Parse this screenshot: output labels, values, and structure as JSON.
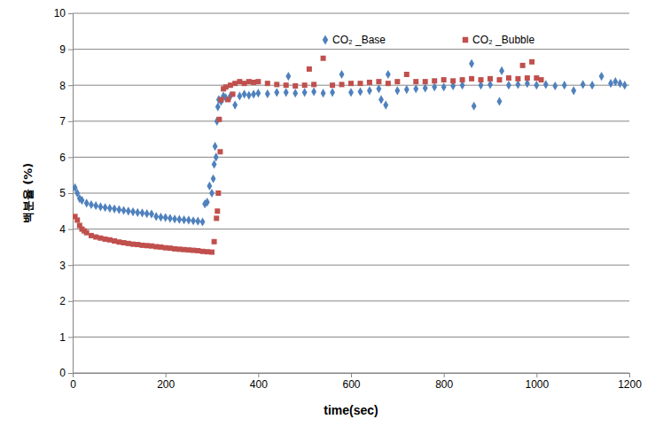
{
  "chart_data": {
    "type": "scatter",
    "x_label": "time(sec)",
    "y_label": "백분율 (%)",
    "xlim": [
      0,
      1200
    ],
    "xticks": [
      0,
      200,
      400,
      600,
      800,
      1000,
      1200
    ],
    "ylim": [
      0,
      10
    ],
    "yticks": [
      0,
      1,
      2,
      3,
      4,
      5,
      6,
      7,
      8,
      9,
      10
    ],
    "grid": true,
    "legend": "top",
    "series": [
      {
        "name": "CO₂ _Base",
        "color": "#4f81bd",
        "marker": "diamond",
        "x": [
          5,
          10,
          15,
          20,
          30,
          40,
          50,
          60,
          70,
          80,
          90,
          100,
          110,
          120,
          130,
          140,
          150,
          160,
          170,
          180,
          190,
          200,
          210,
          220,
          230,
          240,
          250,
          260,
          270,
          280,
          285,
          290,
          295,
          300,
          303,
          305,
          307,
          309,
          311,
          313,
          315,
          320,
          325,
          330,
          340,
          350,
          360,
          370,
          380,
          390,
          400,
          420,
          440,
          460,
          465,
          480,
          500,
          520,
          540,
          560,
          580,
          600,
          620,
          640,
          660,
          665,
          675,
          680,
          700,
          720,
          740,
          760,
          780,
          800,
          820,
          840,
          860,
          865,
          880,
          900,
          920,
          925,
          940,
          960,
          980,
          1000,
          1020,
          1040,
          1060,
          1080,
          1100,
          1120,
          1140,
          1160,
          1170,
          1180,
          1190
        ],
        "values": [
          5.15,
          5.0,
          4.85,
          4.8,
          4.72,
          4.68,
          4.65,
          4.62,
          4.6,
          4.58,
          4.56,
          4.54,
          4.52,
          4.5,
          4.48,
          4.46,
          4.45,
          4.43,
          4.42,
          4.35,
          4.33,
          4.32,
          4.3,
          4.28,
          4.27,
          4.26,
          4.25,
          4.23,
          4.22,
          4.2,
          4.7,
          4.75,
          5.2,
          5.0,
          5.4,
          5.8,
          6.3,
          6.0,
          7.0,
          7.4,
          7.6,
          7.55,
          7.7,
          7.65,
          7.7,
          7.45,
          7.7,
          7.75,
          7.72,
          7.75,
          7.78,
          7.76,
          7.8,
          7.8,
          8.25,
          7.78,
          7.8,
          7.82,
          7.78,
          7.8,
          8.3,
          7.8,
          7.82,
          7.85,
          7.9,
          7.6,
          7.45,
          8.3,
          7.85,
          7.88,
          7.9,
          7.92,
          7.95,
          7.95,
          7.98,
          8.0,
          8.6,
          7.42,
          8.0,
          8.02,
          7.55,
          8.4,
          8.0,
          8.02,
          8.05,
          8.0,
          8.02,
          7.98,
          8.0,
          7.85,
          8.02,
          8.0,
          8.25,
          8.05,
          8.1,
          8.05,
          8.0
        ]
      },
      {
        "name": "CO₂ _Bubble",
        "color": "#c0504d",
        "marker": "square",
        "x": [
          5,
          10,
          15,
          20,
          25,
          30,
          40,
          50,
          60,
          70,
          80,
          90,
          100,
          110,
          120,
          130,
          140,
          150,
          160,
          170,
          180,
          190,
          200,
          210,
          220,
          230,
          240,
          250,
          260,
          270,
          280,
          290,
          300,
          305,
          310,
          312,
          314,
          316,
          318,
          320,
          325,
          330,
          335,
          340,
          345,
          350,
          360,
          370,
          380,
          390,
          400,
          420,
          440,
          460,
          480,
          500,
          510,
          520,
          540,
          560,
          580,
          600,
          620,
          640,
          660,
          680,
          700,
          720,
          740,
          760,
          780,
          800,
          820,
          840,
          860,
          880,
          900,
          920,
          940,
          960,
          970,
          980,
          990,
          1000,
          1010
        ],
        "values": [
          4.35,
          4.25,
          4.1,
          4.0,
          3.95,
          3.9,
          3.82,
          3.78,
          3.75,
          3.72,
          3.7,
          3.67,
          3.64,
          3.62,
          3.6,
          3.58,
          3.57,
          3.55,
          3.54,
          3.53,
          3.51,
          3.5,
          3.48,
          3.47,
          3.45,
          3.44,
          3.43,
          3.42,
          3.41,
          3.4,
          3.38,
          3.37,
          3.36,
          3.65,
          4.3,
          4.5,
          5.0,
          7.05,
          6.15,
          7.6,
          7.9,
          7.95,
          7.6,
          8.0,
          7.75,
          8.05,
          8.1,
          8.05,
          8.1,
          8.08,
          8.1,
          8.05,
          8.02,
          8.0,
          7.98,
          8.0,
          8.45,
          8.02,
          8.75,
          8.0,
          8.02,
          8.05,
          8.05,
          8.08,
          8.1,
          8.05,
          8.1,
          8.3,
          8.1,
          8.1,
          8.12,
          8.15,
          8.12,
          8.15,
          8.18,
          8.15,
          8.18,
          8.15,
          8.2,
          8.18,
          8.55,
          8.2,
          8.65,
          8.2,
          8.15
        ]
      }
    ]
  }
}
